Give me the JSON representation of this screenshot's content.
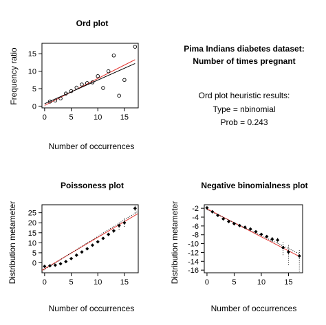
{
  "info": {
    "heading_line1": "Pima Indians diabetes dataset:",
    "heading_line2": "Number of times pregnant",
    "results_title": "Ord plot heuristic results:",
    "type_line": "Type =  nbinomial",
    "prob_line": "Prob =  0.243"
  },
  "colors": {
    "points": "#000000",
    "fit_line_red": "#e3342f",
    "fit_line_black": "#000000"
  },
  "chart_data": [
    {
      "type": "scatter",
      "title": "Ord plot",
      "xlabel": "Number of occurrences",
      "ylabel": "Frequency ratio",
      "xlim": [
        -0.5,
        17.6
      ],
      "ylim": [
        -0.5,
        18
      ],
      "xticks": [
        0,
        5,
        10,
        15
      ],
      "yticks": [
        0,
        5,
        10,
        15
      ],
      "point_style": "open-circle",
      "points": {
        "x": [
          1,
          2,
          3,
          4,
          5,
          6,
          7,
          8,
          9,
          10,
          11,
          12,
          13,
          14,
          15,
          17
        ],
        "y": [
          1.3,
          1.6,
          2.2,
          3.6,
          4.3,
          5.3,
          6.2,
          6.6,
          6.8,
          8.6,
          5.2,
          10,
          14.5,
          3,
          7.5,
          17
        ]
      },
      "lines": [
        {
          "color": "#e3342f",
          "x": [
            0,
            17
          ],
          "y": [
            0.2,
            13.3
          ]
        },
        {
          "color": "#000000",
          "x": [
            0,
            17
          ],
          "y": [
            0.7,
            12.2
          ]
        }
      ]
    },
    {
      "type": "scatter",
      "title": "Poissoness plot",
      "xlabel": "Number of occurrences",
      "ylabel": "Distribution metameter",
      "xlim": [
        -0.5,
        17.6
      ],
      "ylim": [
        -5,
        29
      ],
      "xticks": [
        0,
        5,
        10,
        15
      ],
      "yticks": [
        0,
        5,
        10,
        15,
        20,
        25
      ],
      "point_style": "filled-diamond",
      "points": {
        "x": [
          0,
          1,
          2,
          3,
          4,
          5,
          6,
          7,
          8,
          9,
          10,
          11,
          12,
          13,
          14,
          15,
          17
        ],
        "y": [
          -1.8,
          -1.5,
          -1.2,
          -0.5,
          0.6,
          2.1,
          3.8,
          5.4,
          7,
          8.8,
          10.5,
          12.2,
          14.2,
          16,
          18.6,
          20,
          27.2
        ]
      },
      "error_bars": [
        {
          "x": 13,
          "low": 15,
          "high": 17
        },
        {
          "x": 14,
          "low": 16.5,
          "high": 20.5
        },
        {
          "x": 15,
          "low": 18,
          "high": 22.5
        },
        {
          "x": 17,
          "low": 25,
          "high": 28.5
        }
      ],
      "lines": [
        {
          "color": "#e3342f",
          "x": [
            -0.5,
            17.5
          ],
          "y": [
            -3.8,
            24.5
          ]
        },
        {
          "color": "#000000",
          "x": [
            -0.5,
            17.5
          ],
          "y": [
            -4.2,
            25.6
          ],
          "style": "dotted"
        }
      ]
    },
    {
      "type": "scatter",
      "title": "Negative binomialness plot",
      "xlabel": "Number of occurrences",
      "ylabel": "Distribution metameter",
      "xlim": [
        -0.5,
        17.6
      ],
      "ylim": [
        -16.6,
        -1.2
      ],
      "xticks": [
        0,
        5,
        10,
        15
      ],
      "yticks": [
        -2,
        -4,
        -6,
        -8,
        -10,
        -12,
        -14,
        -16
      ],
      "point_style": "filled-diamond",
      "points": {
        "x": [
          0,
          1,
          2,
          3,
          4,
          5,
          6,
          7,
          8,
          9,
          10,
          11,
          12,
          13,
          14,
          15,
          17
        ],
        "y": [
          -1.9,
          -2.8,
          -3.6,
          -4.4,
          -5.0,
          -5.5,
          -5.9,
          -6.3,
          -6.7,
          -7.3,
          -7.9,
          -8.4,
          -9.0,
          -9.2,
          -10.9,
          -11.9,
          -12.8
        ]
      },
      "error_bars": [
        {
          "x": 12,
          "low": -9.6,
          "high": -8.4
        },
        {
          "x": 13,
          "low": -9.8,
          "high": -8.5
        },
        {
          "x": 14,
          "low": -12.6,
          "high": -9.5
        },
        {
          "x": 15,
          "low": -14.8,
          "high": -10.1
        },
        {
          "x": 17,
          "low": -16.3,
          "high": -11.5
        }
      ],
      "lines": [
        {
          "color": "#e3342f",
          "x": [
            0,
            17
          ],
          "y": [
            -2.1,
            -12.9
          ]
        },
        {
          "color": "#000000",
          "x": [
            0,
            17
          ],
          "y": [
            -2.3,
            -12.3
          ],
          "style": "dotted"
        }
      ]
    }
  ]
}
